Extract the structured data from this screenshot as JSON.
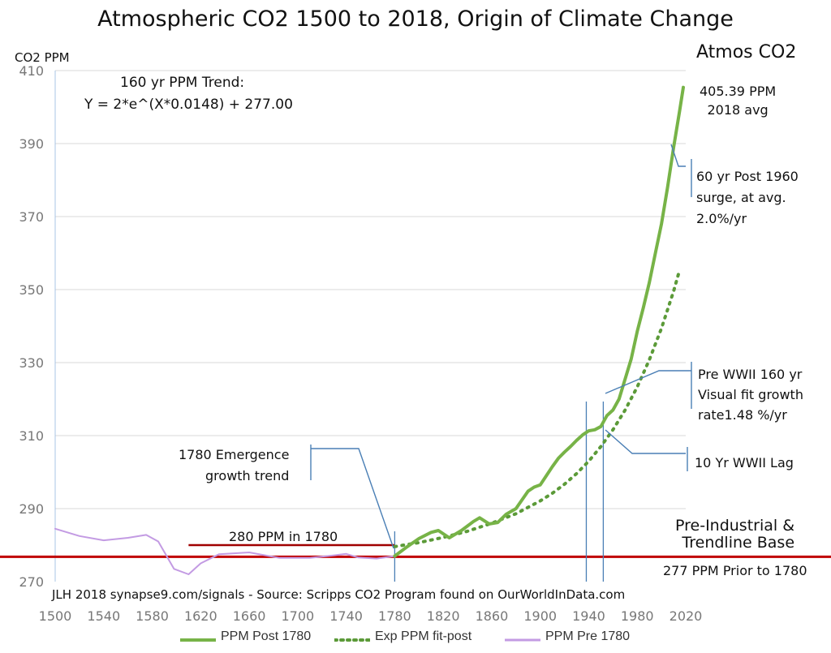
{
  "chart_data": {
    "type": "line",
    "title": "Atmospheric CO2 1500 to 2018, Origin of Climate Change",
    "ylabel": "CO2 PPM",
    "right_label": "Atmos CO2",
    "xlim": [
      1500,
      2020
    ],
    "ylim": [
      270,
      410
    ],
    "x_ticks": [
      "1500",
      "1540",
      "1580",
      "1620",
      "1660",
      "1700",
      "1740",
      "1780",
      "1820",
      "1860",
      "1900",
      "1940",
      "1980",
      "2020"
    ],
    "y_ticks": [
      "270",
      "290",
      "310",
      "330",
      "350",
      "370",
      "390",
      "410"
    ],
    "grid": "horizontal",
    "legend_position": "bottom",
    "series": [
      {
        "name": "PPM Post 1780",
        "color": "#77b347",
        "style": "solid",
        "x": [
          1780,
          1790,
          1800,
          1810,
          1816,
          1825,
          1835,
          1845,
          1850,
          1858,
          1865,
          1872,
          1880,
          1890,
          1895,
          1900,
          1905,
          1910,
          1915,
          1920,
          1925,
          1930,
          1935,
          1940,
          1945,
          1950,
          1955,
          1960,
          1965,
          1970,
          1975,
          1980,
          1985,
          1990,
          1995,
          2000,
          2005,
          2010,
          2015,
          2018
        ],
        "y": [
          277.0,
          279.5,
          281.8,
          283.5,
          284.0,
          282.0,
          284.0,
          286.5,
          287.5,
          285.8,
          286.2,
          288.5,
          290.0,
          294.8,
          295.9,
          296.5,
          299.0,
          301.5,
          303.8,
          305.5,
          307.0,
          308.7,
          310.2,
          311.3,
          311.6,
          312.5,
          315.5,
          317.0,
          320.0,
          325.5,
          331.0,
          338.5,
          345.0,
          352.0,
          360.0,
          368.0,
          378.0,
          389.0,
          399.0,
          405.4
        ]
      },
      {
        "name": "Exp PPM fit-post",
        "color": "#5b9a38",
        "style": "dotted",
        "x": [
          1780,
          1800,
          1820,
          1840,
          1860,
          1880,
          1900,
          1910,
          1920,
          1930,
          1940,
          1950,
          1960,
          1970,
          1980,
          1990,
          2000,
          2010,
          2015
        ],
        "y": [
          279.6,
          280.7,
          282.1,
          283.8,
          286.0,
          288.6,
          292.1,
          294.2,
          296.7,
          299.6,
          303.0,
          307.0,
          311.6,
          317.0,
          323.3,
          330.8,
          339.4,
          349.6,
          355.4
        ]
      },
      {
        "name": "PPM Pre 1780",
        "color": "#c39be3",
        "style": "solid",
        "x": [
          1500,
          1520,
          1540,
          1560,
          1575,
          1585,
          1598,
          1610,
          1620,
          1635,
          1660,
          1685,
          1710,
          1730,
          1740,
          1750,
          1765,
          1780
        ],
        "y": [
          284.5,
          282.5,
          281.3,
          282.0,
          282.8,
          281.0,
          273.5,
          272.0,
          275.0,
          277.5,
          278.0,
          276.5,
          276.5,
          277.2,
          277.6,
          276.6,
          276.3,
          277.0
        ]
      }
    ],
    "annotations": {
      "trend_line1": "160 yr PPM Trend:",
      "trend_line2": "Y = 2*e^(X*0.0148) + 277.00",
      "final_value": "405.39  PPM",
      "final_note": "2018 avg",
      "post1960_l1": "60 yr Post 1960",
      "post1960_l2": "surge, at avg.",
      "post1960_l3": "2.0%/yr",
      "prewwii_l1": "Pre WWII 160 yr",
      "prewwii_l2": "Visual fit growth",
      "prewwii_l3": "rate1.48 %/yr",
      "lag": "10 Yr WWII Lag",
      "emergence_l1": "1780 Emergence",
      "emergence_l2": "growth trend",
      "ppm_1780": "280  PPM in 1780",
      "preindustrial_l1": "Pre-Industrial &",
      "preindustrial_l2": "Trendline Base",
      "prior_1780": "277 PPM Prior to 1780",
      "credit": "JLH 2018   synapse9.com/signals - Source: Scripps CO2 Program found on OurWorldInData.com"
    },
    "reference_lines": [
      {
        "kind": "horizontal",
        "y": 276.8,
        "x_from": 1500,
        "x_to": 2020,
        "color": "#c00000"
      },
      {
        "kind": "horizontal",
        "y": 280,
        "x_from": 1610,
        "x_to": 1780,
        "color": "#a00000"
      },
      {
        "kind": "vertical",
        "x": 1780,
        "color": "#4a7fb5"
      },
      {
        "kind": "vertical",
        "x": 1938,
        "color": "#4a7fb5"
      },
      {
        "kind": "vertical",
        "x": 1952,
        "color": "#4a7fb5"
      }
    ]
  }
}
